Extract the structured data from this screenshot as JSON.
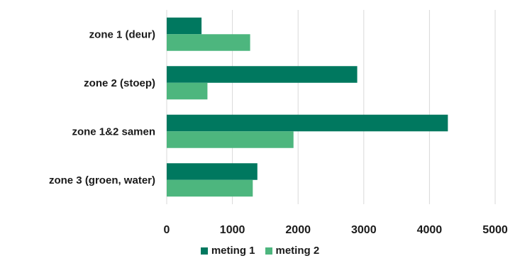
{
  "colors": {
    "series_1": "#00785f",
    "series_2": "#4db67e",
    "grid": "#d9d9d9",
    "text": "#1a1a1a"
  },
  "chart_data": {
    "type": "bar",
    "orientation": "horizontal",
    "categories": [
      "zone 1 (deur)",
      "zone 2 (stoep)",
      "zone 1&2 samen",
      "zone 3 (groen, water)"
    ],
    "series": [
      {
        "name": "meting 1",
        "values": [
          530,
          2900,
          4280,
          1380
        ]
      },
      {
        "name": "meting 2",
        "values": [
          1270,
          620,
          1930,
          1310
        ]
      }
    ],
    "xticks": [
      "0",
      "1000",
      "2000",
      "3000",
      "4000",
      "5000"
    ],
    "xlim": [
      0,
      5000
    ],
    "grid": "vertical",
    "legend_position": "bottom"
  }
}
